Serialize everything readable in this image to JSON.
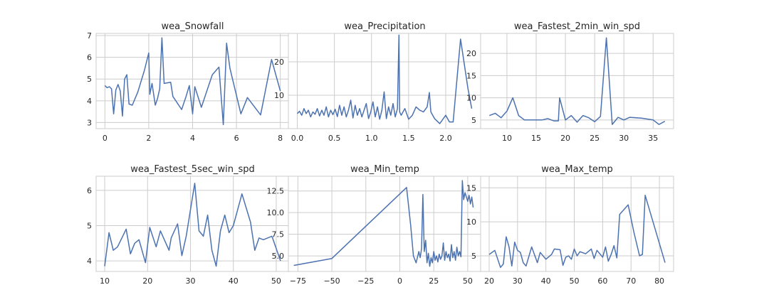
{
  "chart_data": [
    {
      "type": "line",
      "title": "wea_Snowfall",
      "xlim": [
        -0.4,
        8.4
      ],
      "ylim": [
        2.72,
        7.1
      ],
      "xticks": [
        0,
        2,
        4,
        6,
        8
      ],
      "xtick_labels": [
        "0",
        "2",
        "4",
        "6",
        "8"
      ],
      "yticks": [
        3,
        4,
        5,
        6,
        7
      ],
      "ytick_labels": [
        "3",
        "4",
        "5",
        "6",
        "7"
      ],
      "grid": true,
      "color": "#4c72b0",
      "x": [
        0.0,
        0.1,
        0.2,
        0.3,
        0.4,
        0.5,
        0.6,
        0.7,
        0.8,
        0.9,
        1.0,
        1.1,
        1.25,
        1.5,
        1.8,
        2.0,
        2.05,
        2.15,
        2.3,
        2.4,
        2.5,
        2.6,
        2.7,
        3.0,
        3.1,
        3.5,
        3.7,
        3.85,
        4.0,
        4.1,
        4.4,
        4.9,
        5.2,
        5.4,
        5.55,
        5.7,
        6.2,
        6.5,
        7.1,
        7.6,
        8.0
      ],
      "y": [
        4.7,
        4.6,
        4.65,
        4.55,
        3.4,
        4.5,
        4.75,
        4.45,
        3.3,
        5.0,
        5.2,
        3.85,
        3.8,
        4.4,
        5.4,
        6.2,
        4.3,
        4.8,
        3.8,
        4.1,
        4.55,
        6.9,
        4.8,
        4.85,
        4.2,
        3.6,
        4.2,
        4.7,
        3.4,
        4.65,
        3.7,
        5.2,
        5.55,
        2.9,
        6.65,
        5.5,
        3.4,
        4.15,
        3.35,
        5.9,
        4.45
      ]
    },
    {
      "type": "line",
      "title": "wea_Precipitation",
      "xlim": [
        -0.12,
        2.48
      ],
      "ylim": [
        0.0,
        28.5
      ],
      "xticks": [
        0.0,
        0.5,
        1.0,
        1.5,
        2.0
      ],
      "xtick_labels": [
        "0.0",
        "0.5",
        "1.0",
        "1.5",
        "2.0"
      ],
      "yticks": [
        10,
        20
      ],
      "ytick_labels": [
        "10",
        "20"
      ],
      "grid": true,
      "color": "#4c72b0",
      "x": [
        0.0,
        0.03,
        0.06,
        0.09,
        0.12,
        0.15,
        0.18,
        0.21,
        0.24,
        0.27,
        0.3,
        0.33,
        0.36,
        0.39,
        0.42,
        0.45,
        0.48,
        0.51,
        0.54,
        0.57,
        0.6,
        0.63,
        0.66,
        0.69,
        0.72,
        0.75,
        0.78,
        0.81,
        0.84,
        0.87,
        0.9,
        0.93,
        0.96,
        0.99,
        1.02,
        1.05,
        1.08,
        1.11,
        1.14,
        1.17,
        1.2,
        1.23,
        1.26,
        1.29,
        1.32,
        1.35,
        1.37,
        1.38,
        1.4,
        1.45,
        1.5,
        1.55,
        1.6,
        1.65,
        1.7,
        1.75,
        1.78,
        1.8,
        1.85,
        1.92,
        2.0,
        2.05,
        2.1,
        2.2,
        2.3,
        2.35
      ],
      "y": [
        4.5,
        5.2,
        4.0,
        6.0,
        4.5,
        5.5,
        3.5,
        5.0,
        4.3,
        6.0,
        3.8,
        5.5,
        4.0,
        6.5,
        3.5,
        5.5,
        4.2,
        5.8,
        3.6,
        7.0,
        4.0,
        6.5,
        3.5,
        5.5,
        8.5,
        3.2,
        7.0,
        4.0,
        6.0,
        3.5,
        5.5,
        7.5,
        3.0,
        5.0,
        8.0,
        3.5,
        6.5,
        2.8,
        5.5,
        11.0,
        3.0,
        6.5,
        4.0,
        7.5,
        3.5,
        6.0,
        28.0,
        5.0,
        4.0,
        6.0,
        2.8,
        4.0,
        6.5,
        5.5,
        5.0,
        6.5,
        10.8,
        5.0,
        3.0,
        1.5,
        4.0,
        2.0,
        2.0,
        26.8,
        12.0,
        6.0
      ]
    },
    {
      "type": "line",
      "title": "wea_Fastest_2min_win_spd",
      "xlim": [
        5.5,
        38.5
      ],
      "ylim": [
        3.05,
        24.5
      ],
      "xticks": [
        10,
        15,
        20,
        25,
        30,
        35
      ],
      "xtick_labels": [
        "10",
        "15",
        "20",
        "25",
        "30",
        "35"
      ],
      "yticks": [
        5,
        10,
        15,
        20
      ],
      "ytick_labels": [
        "5",
        "10",
        "15",
        "20"
      ],
      "grid": true,
      "color": "#4c72b0",
      "x": [
        7.0,
        8.0,
        9.0,
        10.0,
        11.0,
        12.0,
        13.0,
        14.5,
        16.0,
        17.0,
        18.0,
        18.8,
        19.0,
        20.0,
        21.0,
        22.0,
        23.0,
        24.0,
        25.0,
        26.0,
        27.0,
        28.0,
        29.0,
        30.0,
        31.0,
        33.0,
        35.0,
        36.0,
        37.0
      ],
      "y": [
        6.0,
        6.5,
        5.5,
        7.0,
        10.0,
        6.0,
        5.0,
        5.0,
        5.0,
        5.3,
        4.8,
        4.8,
        10.0,
        5.0,
        6.0,
        4.5,
        6.0,
        5.5,
        4.6,
        5.8,
        23.5,
        4.0,
        5.6,
        5.0,
        5.6,
        5.4,
        5.0,
        4.0,
        4.7
      ]
    },
    {
      "type": "line",
      "title": "wea_Fastest_5sec_win_spd",
      "xlim": [
        8.0,
        53.0
      ],
      "ylim": [
        3.7,
        6.4
      ],
      "xticks": [
        10,
        20,
        30,
        40,
        50
      ],
      "xtick_labels": [
        "10",
        "20",
        "30",
        "40",
        "50"
      ],
      "yticks": [
        4,
        5,
        6
      ],
      "ytick_labels": [
        "4",
        "5",
        "6"
      ],
      "grid": true,
      "color": "#4c72b0",
      "x": [
        10.0,
        11.0,
        12.0,
        13.0,
        15.0,
        16.0,
        17.0,
        18.0,
        19.5,
        20.5,
        22.0,
        23.0,
        25.0,
        25.5,
        27.0,
        28.0,
        29.0,
        31.0,
        32.0,
        33.0,
        34.0,
        35.0,
        36.0,
        37.0,
        38.0,
        39.0,
        40.0,
        42.0,
        44.0,
        45.0,
        46.0,
        47.0,
        49.0,
        51.0
      ],
      "y": [
        3.85,
        4.8,
        4.3,
        4.4,
        4.9,
        4.2,
        4.5,
        4.6,
        3.95,
        4.95,
        4.4,
        4.85,
        4.3,
        4.65,
        5.05,
        4.15,
        4.7,
        6.2,
        4.85,
        4.7,
        5.3,
        4.3,
        3.85,
        4.85,
        5.3,
        4.8,
        5.0,
        5.9,
        5.1,
        4.3,
        4.65,
        4.6,
        4.7,
        4.0
      ]
    },
    {
      "type": "line",
      "title": "wea_Min_temp",
      "xlim": [
        -82.0,
        60.0
      ],
      "ylim": [
        3.2,
        14.2
      ],
      "xticks": [
        -75,
        -50,
        -25,
        0,
        25,
        50
      ],
      "xtick_labels": [
        "−75",
        "−50",
        "−25",
        "0",
        "25",
        "50"
      ],
      "yticks": [
        5.0,
        7.5,
        10.0,
        12.5
      ],
      "ytick_labels": [
        "5.0",
        "7.5",
        "10.0",
        "12.5"
      ],
      "grid": true,
      "color": "#4c72b0",
      "x": [
        -78.0,
        -50.0,
        5.0,
        8.0,
        10.0,
        12.0,
        14.0,
        15.0,
        16.0,
        17.0,
        18.0,
        19.0,
        20.0,
        21.0,
        22.0,
        23.0,
        24.0,
        25.0,
        26.0,
        27.0,
        28.0,
        29.0,
        30.0,
        31.0,
        32.0,
        33.0,
        34.0,
        35.0,
        36.0,
        37.0,
        38.0,
        39.0,
        40.0,
        41.0,
        42.0,
        43.0,
        44.0,
        45.0,
        46.0,
        47.0,
        48.0,
        49.0,
        50.0,
        51.0,
        52.0,
        53.0,
        54.0
      ],
      "y": [
        3.9,
        4.7,
        12.9,
        8.5,
        5.0,
        4.2,
        5.5,
        4.8,
        5.8,
        12.1,
        5.5,
        6.8,
        4.2,
        5.3,
        3.8,
        4.8,
        4.2,
        5.5,
        4.5,
        5.0,
        4.3,
        5.2,
        4.6,
        5.0,
        6.5,
        4.5,
        5.5,
        4.8,
        5.2,
        4.4,
        6.3,
        4.8,
        5.5,
        4.5,
        6.0,
        5.0,
        5.5,
        4.9,
        13.7,
        11.5,
        12.3,
        11.8,
        11.3,
        12.0,
        11.0,
        11.8,
        10.6
      ]
    },
    {
      "type": "line",
      "title": "wea_Max_temp",
      "xlim": [
        17.0,
        85.0
      ],
      "ylim": [
        2.7,
        16.7
      ],
      "xticks": [
        20,
        30,
        40,
        50,
        60,
        70,
        80
      ],
      "xtick_labels": [
        "20",
        "30",
        "40",
        "50",
        "60",
        "70",
        "80"
      ],
      "yticks": [
        5,
        10,
        15
      ],
      "ytick_labels": [
        "5",
        "10",
        "15"
      ],
      "grid": true,
      "color": "#4c72b0",
      "x": [
        20.0,
        22.0,
        24.0,
        25.0,
        26.0,
        27.0,
        28.0,
        29.0,
        30.0,
        31.0,
        32.0,
        33.0,
        35.0,
        37.0,
        38.0,
        40.0,
        42.0,
        43.0,
        45.0,
        46.0,
        47.0,
        48.0,
        49.0,
        50.0,
        51.0,
        52.0,
        54.0,
        56.0,
        57.0,
        58.0,
        60.0,
        61.0,
        62.0,
        63.0,
        64.0,
        65.0,
        66.0,
        69.0,
        71.0,
        73.0,
        74.0,
        75.0,
        82.0
      ],
      "y": [
        5.2,
        5.8,
        3.3,
        3.8,
        7.8,
        6.3,
        3.5,
        7.0,
        5.8,
        5.5,
        4.0,
        3.5,
        6.3,
        4.0,
        5.5,
        4.5,
        5.2,
        6.0,
        5.9,
        3.6,
        4.8,
        5.0,
        4.5,
        6.0,
        5.0,
        5.6,
        5.3,
        6.0,
        4.6,
        5.8,
        4.8,
        6.3,
        4.2,
        5.2,
        6.5,
        4.7,
        11.1,
        12.5,
        8.5,
        5.0,
        5.2,
        13.9,
        4.0
      ]
    }
  ]
}
